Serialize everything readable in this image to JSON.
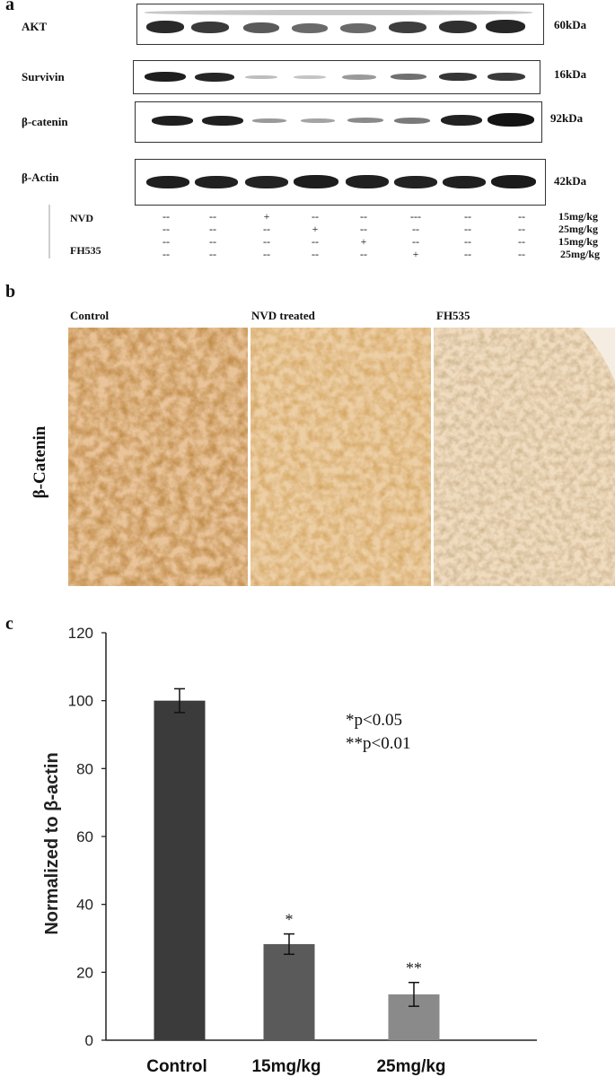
{
  "panel_a": {
    "letter": "a",
    "blots": [
      {
        "label": "AKT",
        "size": "60kDa"
      },
      {
        "label": "Survivin",
        "size": "16kDa"
      },
      {
        "label": "β-catenin",
        "size": "92kDa"
      },
      {
        "label": "β-Actin",
        "size": "42kDa"
      }
    ],
    "conditions": {
      "nvd_label": "NVD",
      "fh535_label": "FH535",
      "doses": [
        "15mg/kg",
        "25mg/kg",
        "15mg/kg",
        "25mg/kg"
      ],
      "rows": [
        [
          "--",
          "--",
          "+",
          "--",
          "--",
          "---",
          "--",
          "--"
        ],
        [
          "--",
          "--",
          "--",
          "+",
          "--",
          "--",
          "--",
          "--"
        ],
        [
          "--",
          "--",
          "--",
          "--",
          "+",
          "--",
          "--",
          "--"
        ],
        [
          "--",
          "--",
          "--",
          "--",
          "--",
          "+",
          "--",
          "--"
        ]
      ]
    }
  },
  "panel_b": {
    "letter": "b",
    "row_label": "β-Catenin",
    "panels": [
      "Control",
      "NVD treated",
      "FH535"
    ]
  },
  "panel_c": {
    "letter": "c",
    "significance": [
      "*p<0.05",
      "**p<0.01"
    ]
  },
  "chart_data": {
    "type": "bar",
    "categories": [
      "Control",
      "15mg/kg",
      "25mg/kg"
    ],
    "values": [
      100,
      28.3,
      13.5
    ],
    "errors": [
      3.5,
      3,
      3.5
    ],
    "annotations": [
      "",
      "*",
      "**"
    ],
    "title": "",
    "xlabel": "",
    "ylabel": "Normalized to β-actin",
    "ylim": [
      0,
      120
    ],
    "yticks": [
      0,
      20,
      40,
      60,
      80,
      100,
      120
    ],
    "bar_colors": [
      "#3b3b3b",
      "#5a5a5a",
      "#8a8a8a"
    ]
  }
}
